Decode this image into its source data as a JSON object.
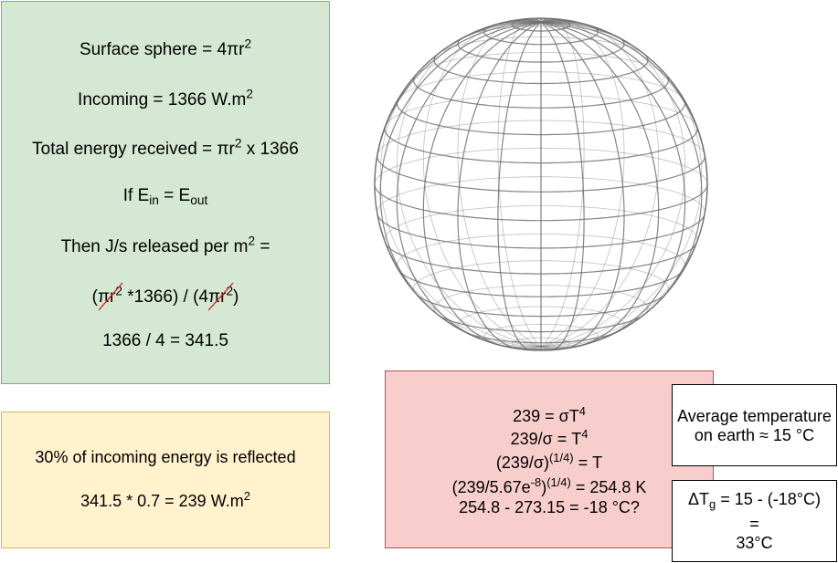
{
  "energy_box": {
    "surface_prefix": "Surface sphere = 4πr",
    "surface_exp": "2",
    "incoming_prefix": "Incoming = 1366 W.m",
    "incoming_exp": "2",
    "total_prefix": "Total energy received = πr",
    "total_exp": "2",
    "total_suffix": " x 1366",
    "if_prefix": "If E",
    "if_sub_in": "in",
    "if_mid": " = E",
    "if_sub_out": "out",
    "then_prefix": "Then J/s released per m",
    "then_exp": "2",
    "then_suffix": " =",
    "formula_open": "(",
    "formula_num_cancel": "πr",
    "formula_num_exp": "2",
    "formula_mid": " *1366) / (4",
    "formula_den_cancel": "πr",
    "formula_den_exp": "2",
    "formula_close": ")",
    "result": "1366 / 4 = 341.5"
  },
  "albedo_box": {
    "line1": "30% of incoming energy is reflected",
    "line2_prefix": "341.5 * 0.7 = 239 W.m",
    "line2_exp": "2"
  },
  "stefan_box": {
    "l1_prefix": "239 = σT",
    "l1_exp": "4",
    "l2_prefix": "239/σ = T",
    "l2_exp": "4",
    "l3_prefix": "(239/σ)",
    "l3_exp": "(1/4)",
    "l3_suffix": " = T",
    "l4_prefix": "(239/5.67e",
    "l4_exp1": "-8",
    "l4_mid": ")",
    "l4_exp2": "(1/4)",
    "l4_suffix": " = 254.8 K",
    "l5": "254.8 - 273.15 = -18 °C?"
  },
  "avg_box": {
    "line1": "Average temperature",
    "line2": "on earth ≈ 15 °C"
  },
  "delta_box": {
    "prefix": "ΔT",
    "sub": "g",
    "suffix": " = 15 - (-18°C)",
    "eq": "=",
    "result": "33°C"
  },
  "colors": {
    "green_fill": "#d5e8d4",
    "yellow_fill": "#fff2cc",
    "red_fill": "#f8cecc",
    "strike_red": "#e02020",
    "globe_lines": "#707070"
  }
}
